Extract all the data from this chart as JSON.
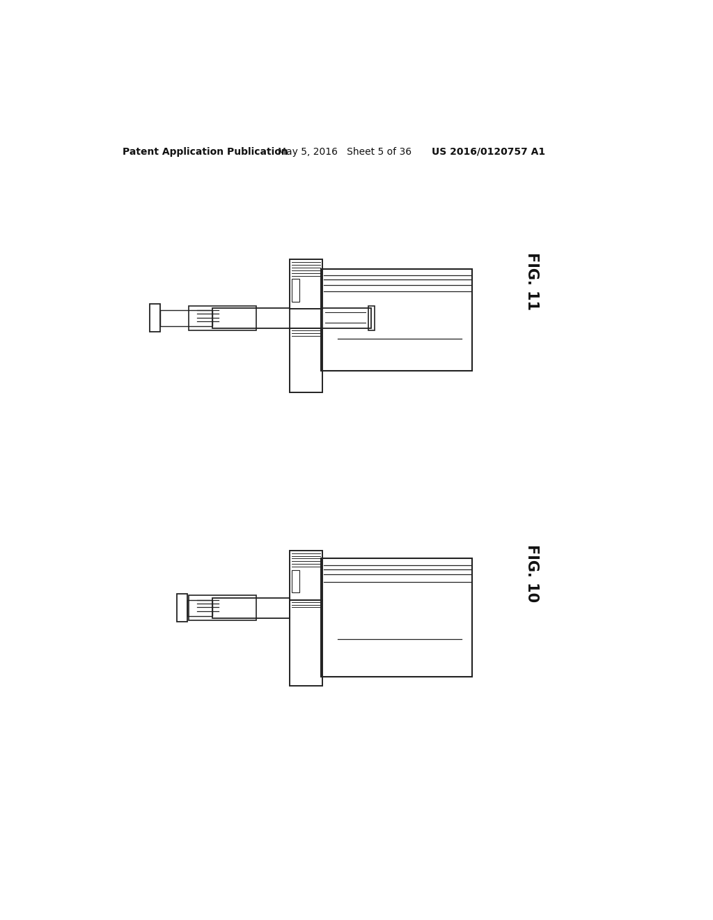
{
  "bg_color": "#ffffff",
  "header_left": "Patent Application Publication",
  "header_mid": "May 5, 2016   Sheet 5 of 36",
  "header_right": "US 2016/0120757 A1",
  "line_color": "#222222",
  "fig11_label": "FIG. 11",
  "fig10_label": "FIG. 10"
}
